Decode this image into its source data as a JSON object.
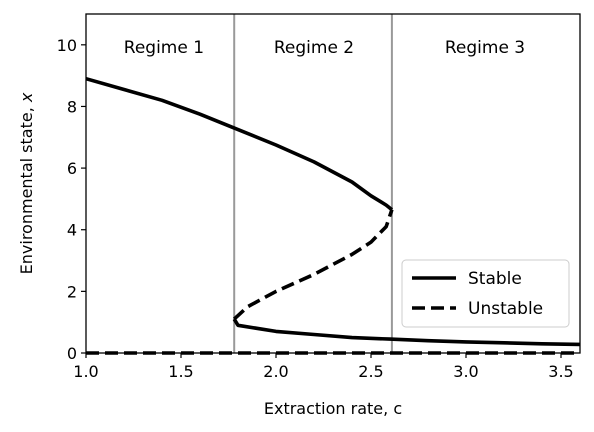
{
  "chart_data": {
    "type": "line",
    "xlabel": "Extraction rate, c",
    "ylabel": "Environmental state, x",
    "xlim": [
      1.0,
      3.6
    ],
    "ylim": [
      0,
      11
    ],
    "xticks": [
      "1.0",
      "1.5",
      "2.0",
      "2.5",
      "3.0",
      "3.5"
    ],
    "yticks": [
      "0",
      "2",
      "4",
      "6",
      "8",
      "10"
    ],
    "grid": false,
    "legend_position": "lower-right",
    "regime_boundaries": [
      1.78,
      2.61
    ],
    "regions": [
      {
        "label": "Regime 1",
        "x_center": 1.41
      },
      {
        "label": "Regime 2",
        "x_center": 2.2
      },
      {
        "label": "Regime 3",
        "x_center": 3.1
      }
    ],
    "series": [
      {
        "name": "Stable",
        "style": "solid",
        "segments": [
          [
            [
              1.0,
              8.9
            ],
            [
              1.2,
              8.55
            ],
            [
              1.4,
              8.2
            ],
            [
              1.6,
              7.75
            ],
            [
              1.8,
              7.25
            ],
            [
              2.0,
              6.75
            ],
            [
              2.2,
              6.2
            ],
            [
              2.4,
              5.55
            ],
            [
              2.5,
              5.1
            ],
            [
              2.58,
              4.8
            ],
            [
              2.61,
              4.65
            ]
          ],
          [
            [
              1.78,
              1.1
            ],
            [
              1.8,
              0.9
            ],
            [
              2.0,
              0.7
            ],
            [
              2.2,
              0.6
            ],
            [
              2.4,
              0.5
            ],
            [
              2.6,
              0.45
            ],
            [
              2.8,
              0.4
            ],
            [
              3.0,
              0.36
            ],
            [
              3.2,
              0.33
            ],
            [
              3.4,
              0.3
            ],
            [
              3.6,
              0.28
            ]
          ]
        ]
      },
      {
        "name": "Unstable",
        "style": "dashed",
        "segments": [
          [
            [
              1.78,
              1.1
            ],
            [
              1.85,
              1.5
            ],
            [
              2.0,
              2.0
            ],
            [
              2.2,
              2.55
            ],
            [
              2.4,
              3.2
            ],
            [
              2.5,
              3.6
            ],
            [
              2.58,
              4.1
            ],
            [
              2.61,
              4.65
            ]
          ],
          [
            [
              1.0,
              0.0
            ],
            [
              3.6,
              0.0
            ]
          ]
        ]
      }
    ]
  }
}
